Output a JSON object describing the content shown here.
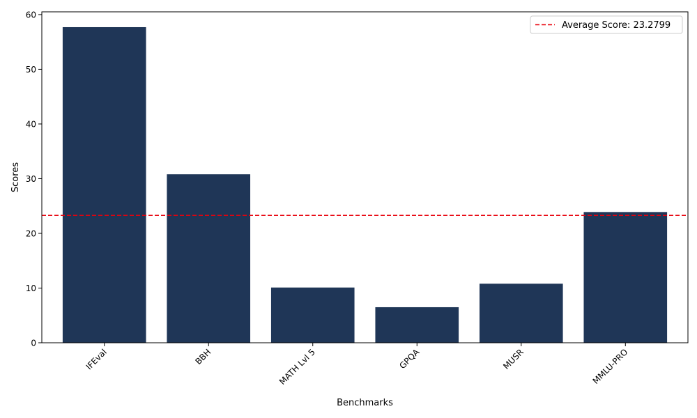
{
  "chart_data": {
    "type": "bar",
    "categories": [
      "IFEval",
      "BBH",
      "MATH Lvl 5",
      "GPQA",
      "MUSR",
      "MMLU-PRO"
    ],
    "values": [
      57.7,
      30.8,
      10.1,
      6.5,
      10.8,
      23.9
    ],
    "xlabel": "Benchmarks",
    "ylabel": "Scores",
    "ylim": [
      0,
      60.5
    ],
    "yticks": [
      0,
      10,
      20,
      30,
      40,
      50,
      60
    ],
    "bar_color": "#1f3657",
    "average": {
      "value": 23.2799,
      "label": "Average Score: 23.2799",
      "color": "#e8000b",
      "style": "dashed"
    },
    "legend_position": "top-right",
    "grid": false
  }
}
